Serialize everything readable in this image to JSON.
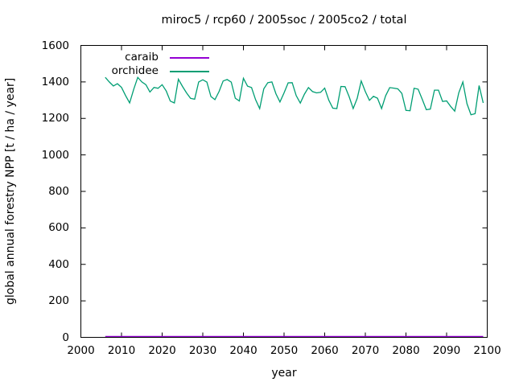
{
  "window": {
    "background": "#ffffff"
  },
  "chart_data": {
    "type": "line",
    "title": "miroc5 / rcp60 / 2005soc / 2005co2 / total",
    "xlabel": "year",
    "ylabel": "global annual forestry NPP [t / ha / year]",
    "xlim": [
      2000,
      2100
    ],
    "ylim": [
      0,
      1600
    ],
    "xticks": [
      2000,
      2010,
      2020,
      2030,
      2040,
      2050,
      2060,
      2070,
      2080,
      2090,
      2100
    ],
    "yticks": [
      0,
      200,
      400,
      600,
      800,
      1000,
      1200,
      1400,
      1600
    ],
    "grid": false,
    "legend_position": "top-left-inside",
    "axis_color": "#000000",
    "text_color": "#000000",
    "x": [
      2006,
      2007,
      2008,
      2009,
      2010,
      2011,
      2012,
      2013,
      2014,
      2015,
      2016,
      2017,
      2018,
      2019,
      2020,
      2021,
      2022,
      2023,
      2024,
      2025,
      2026,
      2027,
      2028,
      2029,
      2030,
      2031,
      2032,
      2033,
      2034,
      2035,
      2036,
      2037,
      2038,
      2039,
      2040,
      2041,
      2042,
      2043,
      2044,
      2045,
      2046,
      2047,
      2048,
      2049,
      2050,
      2051,
      2052,
      2053,
      2054,
      2055,
      2056,
      2057,
      2058,
      2059,
      2060,
      2061,
      2062,
      2063,
      2064,
      2065,
      2066,
      2067,
      2068,
      2069,
      2070,
      2071,
      2072,
      2073,
      2074,
      2075,
      2076,
      2077,
      2078,
      2079,
      2080,
      2081,
      2082,
      2083,
      2084,
      2085,
      2086,
      2087,
      2088,
      2089,
      2090,
      2091,
      2092,
      2093,
      2094,
      2095,
      2096,
      2097,
      2098,
      2099
    ],
    "series": [
      {
        "name": "caraib",
        "color": "#9400d3",
        "values": [
          5,
          5,
          5,
          5,
          5,
          5,
          5,
          5,
          5,
          5,
          5,
          5,
          5,
          5,
          5,
          5,
          5,
          5,
          5,
          5,
          5,
          5,
          5,
          5,
          5,
          5,
          5,
          5,
          5,
          5,
          5,
          5,
          5,
          5,
          5,
          5,
          5,
          5,
          5,
          5,
          5,
          5,
          5,
          5,
          5,
          5,
          5,
          5,
          5,
          5,
          5,
          5,
          5,
          5,
          5,
          5,
          5,
          5,
          5,
          5,
          5,
          5,
          5,
          5,
          5,
          5,
          5,
          5,
          5,
          5,
          5,
          5,
          5,
          5,
          5,
          5,
          5,
          5,
          5,
          5,
          5,
          5,
          5,
          5,
          5,
          5,
          5,
          5,
          5,
          5,
          5,
          5,
          5,
          5
        ]
      },
      {
        "name": "orchidee",
        "color": "#009e73",
        "values": [
          1425,
          1400,
          1378,
          1390,
          1370,
          1325,
          1285,
          1360,
          1425,
          1400,
          1385,
          1345,
          1370,
          1365,
          1385,
          1350,
          1295,
          1285,
          1415,
          1375,
          1340,
          1310,
          1305,
          1400,
          1412,
          1399,
          1320,
          1303,
          1347,
          1405,
          1413,
          1399,
          1311,
          1296,
          1420,
          1377,
          1369,
          1303,
          1254,
          1362,
          1396,
          1400,
          1335,
          1290,
          1340,
          1395,
          1396,
          1325,
          1284,
          1333,
          1369,
          1347,
          1340,
          1343,
          1366,
          1300,
          1256,
          1254,
          1375,
          1374,
          1320,
          1254,
          1310,
          1405,
          1347,
          1299,
          1321,
          1311,
          1254,
          1325,
          1369,
          1366,
          1362,
          1337,
          1244,
          1242,
          1365,
          1360,
          1305,
          1248,
          1251,
          1355,
          1355,
          1293,
          1296,
          1266,
          1240,
          1340,
          1400,
          1281,
          1220,
          1226,
          1380,
          1285
        ]
      }
    ]
  }
}
